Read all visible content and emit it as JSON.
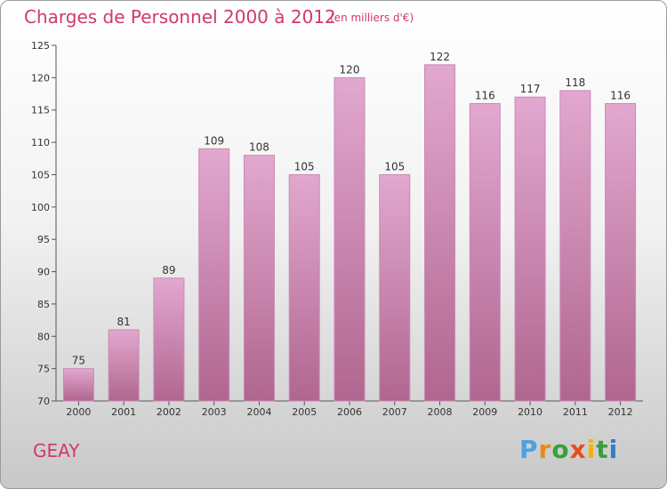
{
  "header": {
    "title": "Charges de Personnel 2000 à 2012",
    "subtitle": "(en milliers d'€)"
  },
  "footer": {
    "commune": "GEAY",
    "logo": [
      "P",
      "r",
      "o",
      "x",
      "i",
      "t",
      "i"
    ],
    "logo_colors": [
      "#4aa3df",
      "#e8891a",
      "#3b9e3b",
      "#e84e1b",
      "#f2b400",
      "#3b9e3b",
      "#2f7fc8"
    ]
  },
  "chart_data": {
    "type": "bar",
    "categories": [
      "2000",
      "2001",
      "2002",
      "2003",
      "2004",
      "2005",
      "2006",
      "2007",
      "2008",
      "2009",
      "2010",
      "2011",
      "2012"
    ],
    "values": [
      75,
      81,
      89,
      109,
      108,
      105,
      120,
      105,
      122,
      116,
      117,
      118,
      116
    ],
    "title": "Charges de Personnel 2000 à 2012",
    "xlabel": "",
    "ylabel": "",
    "ylim": [
      70,
      125
    ],
    "yticks": [
      70,
      75,
      80,
      85,
      90,
      95,
      100,
      105,
      110,
      115,
      120,
      125
    ],
    "grid": false,
    "bar_color": "#dc9cc6"
  }
}
